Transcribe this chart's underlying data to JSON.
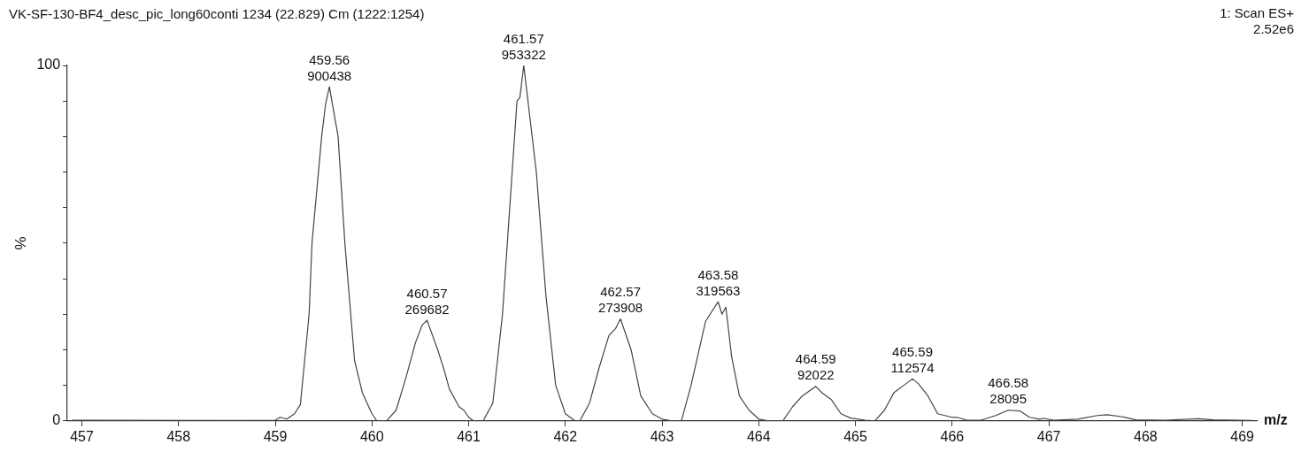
{
  "chart_data": {
    "type": "line",
    "title": "VK-SF-130-BF4_desc_pic_long60conti 1234 (22.829) Cm (1222:1254)",
    "xlabel": "m/z",
    "ylabel": "%",
    "annotations": [
      "1: Scan ES+\n2.52e6",
      {
        "text": "459.56\n900438",
        "x": 459.56,
        "y": 94
      },
      {
        "text": "460.57\n269682",
        "x": 460.57,
        "y": 28.3
      },
      {
        "text": "461.57\n953322",
        "x": 461.57,
        "y": 100
      },
      {
        "text": "462.57\n273908",
        "x": 462.57,
        "y": 28.7
      },
      {
        "text": "463.58\n319563",
        "x": 463.58,
        "y": 33.5
      },
      {
        "text": "464.59\n92022",
        "x": 464.59,
        "y": 9.7
      },
      {
        "text": "465.59\n112574",
        "x": 465.59,
        "y": 11.8
      },
      {
        "text": "466.58\n28095",
        "x": 466.58,
        "y": 3
      }
    ],
    "x": [
      456.9,
      458.5,
      459.0,
      459.05,
      459.12,
      459.2,
      459.26,
      459.35,
      459.38,
      459.48,
      459.52,
      459.56,
      459.65,
      459.72,
      459.82,
      459.9,
      460.0,
      460.05,
      460.15,
      460.25,
      460.35,
      460.45,
      460.52,
      460.57,
      460.68,
      460.75,
      460.8,
      460.9,
      460.95,
      461.0,
      461.05,
      461.15,
      461.25,
      461.35,
      461.45,
      461.5,
      461.53,
      461.57,
      461.7,
      461.8,
      461.9,
      462.0,
      462.1,
      462.15,
      462.25,
      462.35,
      462.45,
      462.52,
      462.57,
      462.68,
      462.78,
      462.9,
      463.0,
      463.1,
      463.2,
      463.3,
      463.45,
      463.58,
      463.62,
      463.66,
      463.72,
      463.8,
      463.9,
      464.0,
      464.1,
      464.25,
      464.35,
      464.45,
      464.59,
      464.65,
      464.75,
      464.85,
      464.95,
      465.1,
      465.2,
      465.3,
      465.4,
      465.5,
      465.59,
      465.65,
      465.75,
      465.85,
      466.0,
      466.05,
      466.15,
      466.3,
      466.45,
      466.58,
      466.7,
      466.8,
      466.9,
      466.95,
      467.05,
      467.3,
      467.5,
      467.6,
      467.75,
      467.9,
      468.2,
      468.55,
      468.7,
      469.1
    ],
    "values": [
      0.2,
      0.1,
      0.2,
      1,
      0.5,
      2,
      4.6,
      30,
      50,
      80,
      89,
      94,
      80,
      50,
      17,
      8,
      2,
      0,
      0,
      3,
      12,
      22,
      27,
      28.3,
      20,
      14,
      9,
      4,
      3,
      1,
      0,
      0,
      5,
      30,
      70,
      90,
      91,
      100,
      70,
      35,
      10,
      2,
      0,
      0,
      5,
      15,
      24,
      26,
      28.7,
      20,
      7,
      2,
      0.5,
      0,
      0,
      10,
      28,
      33.5,
      30,
      32,
      18,
      7,
      3,
      0.5,
      0,
      0,
      4,
      7,
      9.7,
      8,
      6,
      2,
      0.8,
      0.2,
      0,
      3,
      8,
      10,
      11.8,
      10.5,
      7,
      2,
      1,
      1,
      0.2,
      0.2,
      1.5,
      3,
      2.8,
      1,
      0.5,
      0.7,
      0.2,
      0.5,
      1.5,
      1.7,
      1.2,
      0.3,
      0.2,
      0.6,
      0.3,
      0.1
    ],
    "color": "#444444",
    "marker": "none",
    "line_style": "solid",
    "grid": false,
    "legend": false,
    "xlim": [
      456.85,
      469.15
    ],
    "ylim": [
      0,
      100
    ],
    "xticks": [
      457,
      458,
      459,
      460,
      461,
      462,
      463,
      464,
      465,
      466,
      467,
      468,
      469
    ],
    "yticks": [
      0,
      {
        "value": 10,
        "label": null
      },
      {
        "value": 20,
        "label": null
      },
      {
        "value": 30,
        "label": null
      },
      {
        "value": 40,
        "label": null
      },
      {
        "value": 50,
        "label": null
      },
      {
        "value": 60,
        "label": null
      },
      {
        "value": 70,
        "label": null
      },
      {
        "value": 80,
        "label": null
      },
      {
        "value": 90,
        "label": null
      },
      100
    ]
  }
}
